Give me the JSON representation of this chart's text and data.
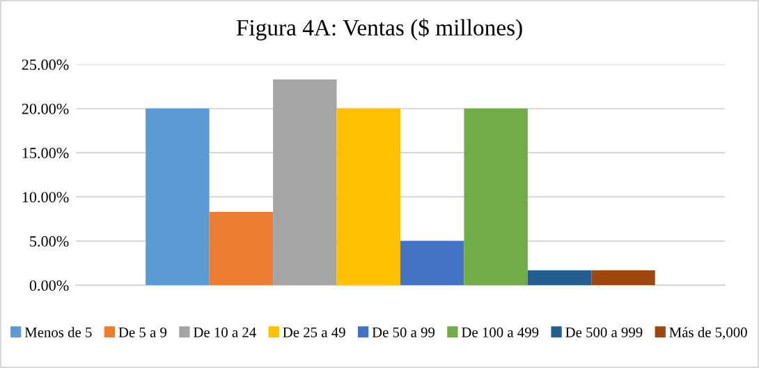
{
  "chart_data": {
    "type": "bar",
    "title": "Figura 4A: Ventas ($ millones)",
    "categories": [
      null
    ],
    "series": [
      {
        "name": "Menos de 5",
        "color": "#5b9bd5",
        "values": [
          20
        ]
      },
      {
        "name": "De 5 a 9",
        "color": "#ed7d31",
        "values": [
          8.3
        ]
      },
      {
        "name": "De 10 a 24",
        "color": "#a5a5a5",
        "values": [
          23.3
        ]
      },
      {
        "name": "De 25 a 49",
        "color": "#ffc000",
        "values": [
          20
        ]
      },
      {
        "name": "De 50 a 99",
        "color": "#4472c4",
        "values": [
          5
        ]
      },
      {
        "name": "De 100 a 499",
        "color": "#70ad47",
        "values": [
          20
        ]
      },
      {
        "name": "De 500 a 999",
        "color": "#255e91",
        "values": [
          1.7
        ]
      },
      {
        "name": "Más de 5,000",
        "color": "#9e480e",
        "values": [
          1.7
        ]
      }
    ],
    "ylim": [
      0,
      25
    ],
    "yticks": [
      {
        "value": 0,
        "label": "0.00%"
      },
      {
        "value": 5,
        "label": "5.00%"
      },
      {
        "value": 10,
        "label": "10.00%"
      },
      {
        "value": 15,
        "label": "15.00%"
      },
      {
        "value": 20,
        "label": "20.00%"
      },
      {
        "value": 25,
        "label": "25.00%"
      }
    ],
    "grid": "y",
    "legend": "bottom"
  }
}
